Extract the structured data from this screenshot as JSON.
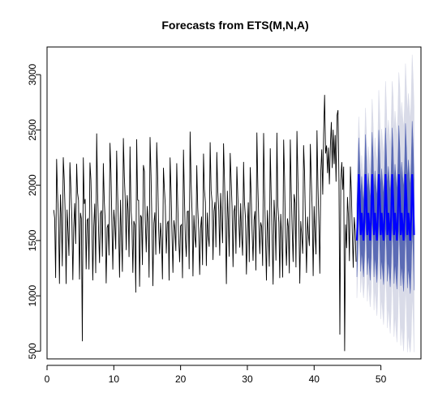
{
  "chart_data": {
    "type": "line",
    "title": "Forecasts from ETS(M,N,A)",
    "xlabel": "",
    "ylabel": "",
    "xlim": [
      0,
      56
    ],
    "ylim": [
      430,
      3250
    ],
    "x_ticks": [
      0,
      10,
      20,
      30,
      40,
      50
    ],
    "y_ticks": [
      500,
      1000,
      1500,
      2000,
      2500,
      3000
    ],
    "grid": false,
    "colors": {
      "history": "#000000",
      "forecast_mean": "#0000ff",
      "interval_80": "#5b6bb5",
      "interval_95": "#d9dbe8"
    },
    "history": {
      "start": 1,
      "frequency": 7,
      "weekly_pattern": [
        1780,
        1680,
        1300,
        2330,
        1950,
        1700,
        1260
      ],
      "weekly_pattern_late": [
        2100,
        2300,
        2050,
        2500,
        2700,
        2200,
        2350
      ],
      "late_start_index": 280,
      "late_end_index": 303,
      "notable_points": [
        {
          "x": 5.3,
          "y": 590
        },
        {
          "x": 6.9,
          "y": 1140
        },
        {
          "x": 13.3,
          "y": 1030
        },
        {
          "x": 43.9,
          "y": 650
        },
        {
          "x": 44.6,
          "y": 500
        }
      ],
      "end": 46.3
    },
    "forecast": {
      "start": 46.4,
      "end": 54.9,
      "weekly_mean": [
        1500,
        1720,
        2100,
        1880,
        1550,
        1750,
        1620
      ],
      "hi80_offset": [
        330,
        360,
        380,
        400,
        420,
        440,
        460,
        480,
        500
      ],
      "hi95_offset": [
        520,
        600,
        680,
        760,
        840,
        920,
        1000,
        1080,
        1160
      ]
    }
  }
}
